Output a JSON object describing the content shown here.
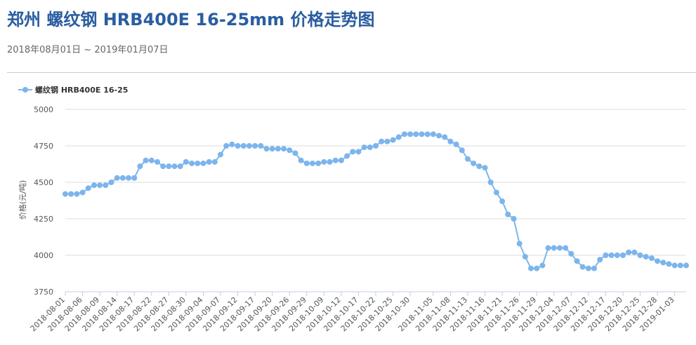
{
  "header": {
    "title": "郑州 螺纹钢 HRB400E 16-25mm 价格走势图",
    "date_range": "2018年08月01日 ~ 2019年01月07日"
  },
  "colors": {
    "title": "#2a5da0",
    "series": "#7cb5ec",
    "grid": "#dddddd",
    "axis": "#c0d0e0"
  },
  "chart_data": {
    "type": "line",
    "ylabel": "价格(元/吨)",
    "ylim": [
      3750,
      5000
    ],
    "yticks": [
      3750,
      4000,
      4250,
      4500,
      4750,
      5000
    ],
    "grid": true,
    "legend_position": "top-left",
    "x": [
      "2018-08-01",
      "2018-08-02",
      "2018-08-03",
      "2018-08-06",
      "2018-08-07",
      "2018-08-08",
      "2018-08-09",
      "2018-08-10",
      "2018-08-13",
      "2018-08-14",
      "2018-08-15",
      "2018-08-16",
      "2018-08-17",
      "2018-08-20",
      "2018-08-21",
      "2018-08-22",
      "2018-08-23",
      "2018-08-24",
      "2018-08-27",
      "2018-08-28",
      "2018-08-29",
      "2018-08-30",
      "2018-08-31",
      "2018-09-03",
      "2018-09-04",
      "2018-09-05",
      "2018-09-06",
      "2018-09-07",
      "2018-09-10",
      "2018-09-11",
      "2018-09-12",
      "2018-09-13",
      "2018-09-14",
      "2018-09-17",
      "2018-09-18",
      "2018-09-19",
      "2018-09-20",
      "2018-09-21",
      "2018-09-25",
      "2018-09-26",
      "2018-09-27",
      "2018-09-28",
      "2018-09-29",
      "2018-09-30",
      "2018-10-08",
      "2018-10-09",
      "2018-10-10",
      "2018-10-11",
      "2018-10-12",
      "2018-10-15",
      "2018-10-16",
      "2018-10-17",
      "2018-10-18",
      "2018-10-19",
      "2018-10-22",
      "2018-10-23",
      "2018-10-24",
      "2018-10-25",
      "2018-10-26",
      "2018-10-29",
      "2018-10-30",
      "2018-10-31",
      "2018-11-01",
      "2018-11-02",
      "2018-11-05",
      "2018-11-06",
      "2018-11-07",
      "2018-11-08",
      "2018-11-09",
      "2018-11-12",
      "2018-11-13",
      "2018-11-14",
      "2018-11-15",
      "2018-11-16",
      "2018-11-19",
      "2018-11-20",
      "2018-11-21",
      "2018-11-22",
      "2018-11-23",
      "2018-11-26",
      "2018-11-27",
      "2018-11-28",
      "2018-11-29",
      "2018-11-30",
      "2018-12-03",
      "2018-12-04",
      "2018-12-05",
      "2018-12-06",
      "2018-12-07",
      "2018-12-10",
      "2018-12-11",
      "2018-12-12",
      "2018-12-13",
      "2018-12-14",
      "2018-12-17",
      "2018-12-18",
      "2018-12-19",
      "2018-12-20",
      "2018-12-21",
      "2018-12-24",
      "2018-12-25",
      "2018-12-26",
      "2018-12-27",
      "2018-12-28",
      "2018-12-29",
      "2019-01-02",
      "2019-01-03",
      "2019-01-04",
      "2019-01-07"
    ],
    "x_tick_labels": [
      "2018-08-01",
      "2018-08-06",
      "2018-08-09",
      "2018-08-14",
      "2018-08-17",
      "2018-08-22",
      "2018-08-27",
      "2018-08-30",
      "2018-09-04",
      "2018-09-07",
      "2018-09-12",
      "2018-09-17",
      "2018-09-20",
      "2018-09-26",
      "2018-09-29",
      "2018-10-09",
      "2018-10-12",
      "2018-10-17",
      "2018-10-22",
      "2018-10-25",
      "2018-10-30",
      "2018-11-05",
      "2018-11-08",
      "2018-11-13",
      "2018-11-16",
      "2018-11-21",
      "2018-11-26",
      "2018-11-29",
      "2018-12-04",
      "2018-12-07",
      "2018-12-12",
      "2018-12-17",
      "2018-12-20",
      "2018-12-25",
      "2018-12-28",
      "2019-01-03"
    ],
    "series": [
      {
        "name": "螺纹钢 HRB400E 16-25",
        "values": [
          4420,
          4420,
          4420,
          4430,
          4460,
          4480,
          4480,
          4480,
          4500,
          4530,
          4530,
          4530,
          4530,
          4610,
          4650,
          4650,
          4640,
          4610,
          4610,
          4610,
          4610,
          4640,
          4630,
          4630,
          4630,
          4640,
          4640,
          4690,
          4750,
          4760,
          4750,
          4750,
          4750,
          4750,
          4750,
          4730,
          4730,
          4730,
          4730,
          4720,
          4700,
          4650,
          4630,
          4630,
          4630,
          4640,
          4640,
          4650,
          4650,
          4680,
          4710,
          4710,
          4740,
          4740,
          4750,
          4780,
          4780,
          4790,
          4810,
          4830,
          4830,
          4830,
          4830,
          4830,
          4830,
          4820,
          4810,
          4780,
          4760,
          4720,
          4660,
          4630,
          4610,
          4600,
          4500,
          4430,
          4370,
          4280,
          4250,
          4080,
          3990,
          3910,
          3910,
          3930,
          4050,
          4050,
          4050,
          4050,
          4010,
          3960,
          3920,
          3910,
          3910,
          3970,
          4000,
          4000,
          4000,
          4000,
          4020,
          4020,
          4000,
          3990,
          3980,
          3960,
          3950,
          3940,
          3930,
          3930,
          3930
        ]
      }
    ]
  }
}
